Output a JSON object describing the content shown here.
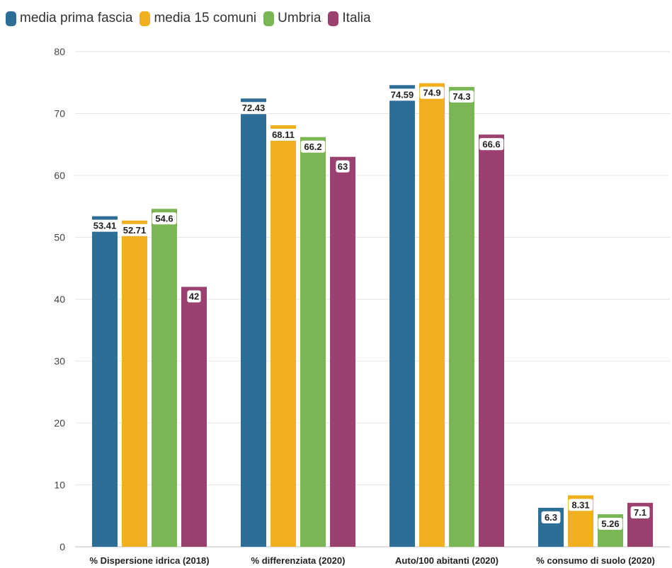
{
  "chart_data": {
    "type": "bar",
    "categories": [
      "% Dispersione idrica (2018)",
      "% differenziata (2020)",
      "Auto/100 abitanti (2020)",
      "% consumo di suolo (2020)"
    ],
    "series": [
      {
        "name": "media prima fascia",
        "color": "#2e6e96",
        "values": [
          53.41,
          72.43,
          74.59,
          6.3
        ],
        "labels": [
          "53.41",
          "72.43",
          "74.59",
          "6.3"
        ]
      },
      {
        "name": "media 15 comuni",
        "color": "#f0b020",
        "values": [
          52.71,
          68.11,
          74.9,
          8.31
        ],
        "labels": [
          "52.71",
          "68.11",
          "74.9",
          "8.31"
        ]
      },
      {
        "name": "Umbria",
        "color": "#7ab653",
        "values": [
          54.6,
          66.2,
          74.3,
          5.26
        ],
        "labels": [
          "54.6",
          "66.2",
          "74.3",
          "5.26"
        ]
      },
      {
        "name": "Italia",
        "color": "#9b4170",
        "values": [
          42,
          63,
          66.6,
          7.1
        ],
        "labels": [
          "42",
          "63",
          "66.6",
          "7.1"
        ]
      }
    ],
    "yticks": [
      "0",
      "10",
      "20",
      "30",
      "40",
      "50",
      "60",
      "70",
      "80"
    ],
    "ylim": [
      0,
      80
    ],
    "grid": true,
    "legend": "top-left"
  }
}
